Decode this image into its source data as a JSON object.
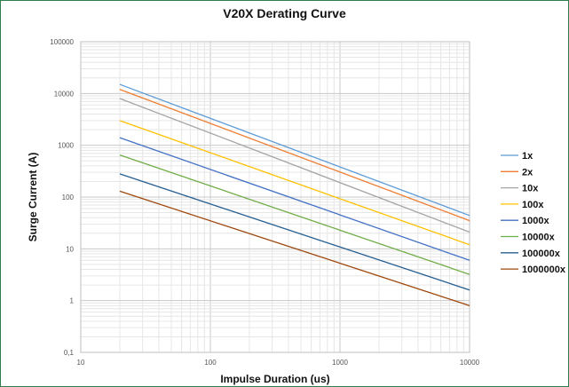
{
  "chart_data": {
    "type": "line",
    "title": "V20X Derating Curve",
    "xlabel": "Impulse Duration (us)",
    "ylabel": "Surge Current (A)",
    "x_scale": "log",
    "y_scale": "log",
    "xlim": [
      10,
      10000
    ],
    "ylim": [
      0.1,
      100000
    ],
    "x_ticks": [
      "10",
      "100",
      "1000",
      "10000"
    ],
    "y_ticks": [
      "0,1",
      "1",
      "10",
      "100",
      "1000",
      "10000",
      "100000"
    ],
    "grid": true,
    "legend": "right",
    "series": [
      {
        "name": "1x",
        "color": "#5b9bd5",
        "x": [
          20,
          10000
        ],
        "y": [
          15000,
          44
        ]
      },
      {
        "name": "2x",
        "color": "#ed7d31",
        "x": [
          20,
          10000
        ],
        "y": [
          12000,
          35
        ]
      },
      {
        "name": "10x",
        "color": "#a5a5a5",
        "x": [
          20,
          10000
        ],
        "y": [
          8000,
          21
        ]
      },
      {
        "name": "100x",
        "color": "#ffc000",
        "x": [
          20,
          10000
        ],
        "y": [
          3000,
          12
        ]
      },
      {
        "name": "1000x",
        "color": "#4472c4",
        "x": [
          20,
          10000
        ],
        "y": [
          1400,
          6
        ]
      },
      {
        "name": "10000x",
        "color": "#70ad47",
        "x": [
          20,
          10000
        ],
        "y": [
          650,
          3.2
        ]
      },
      {
        "name": "100000x",
        "color": "#255e91",
        "x": [
          20,
          10000
        ],
        "y": [
          280,
          1.6
        ]
      },
      {
        "name": "1000000x",
        "color": "#9e480e",
        "x": [
          20,
          10000
        ],
        "y": [
          130,
          0.8
        ]
      }
    ]
  }
}
